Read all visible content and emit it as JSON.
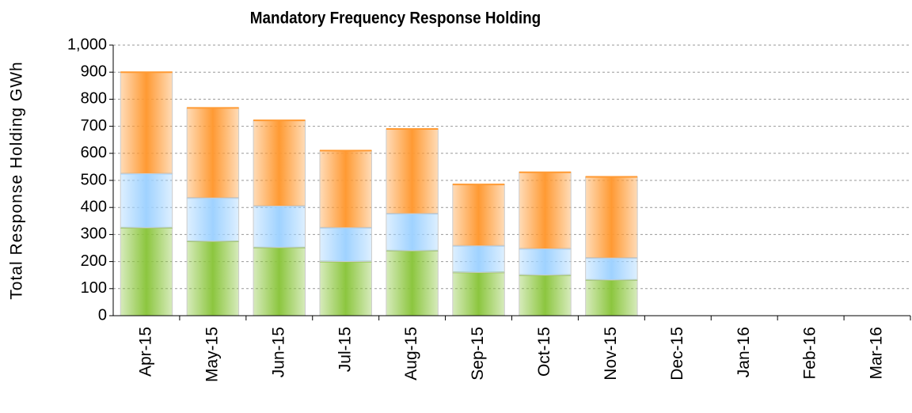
{
  "chart_data": {
    "type": "stacked_bar",
    "title": "Mandatory Frequency Response Holding",
    "y_label": "Total Response Holding GWh",
    "categories": [
      "Apr-15",
      "May-15",
      "Jun-15",
      "Jul-15",
      "Aug-15",
      "Sep-15",
      "Oct-15",
      "Nov-15",
      "Dec-15",
      "Jan-16",
      "Feb-16",
      "Mar-16"
    ],
    "series": [
      {
        "color": "#8cc63f",
        "values": [
          325,
          275,
          252,
          200,
          240,
          160,
          150,
          132,
          null,
          null,
          null,
          null
        ]
      },
      {
        "color": "#9fd2ff",
        "values": [
          200,
          160,
          153,
          125,
          137,
          98,
          97,
          81,
          null,
          null,
          null,
          null
        ]
      },
      {
        "color": "#ff9a33",
        "values": [
          375,
          333,
          317,
          285,
          313,
          227,
          283,
          300,
          null,
          null,
          null,
          null
        ]
      }
    ],
    "ylim": [
      0,
      1000
    ],
    "yticks": [
      0,
      100,
      200,
      300,
      400,
      500,
      600,
      700,
      800,
      900,
      {
        "value": 1000,
        "label": "1,000"
      }
    ],
    "grid": true
  }
}
